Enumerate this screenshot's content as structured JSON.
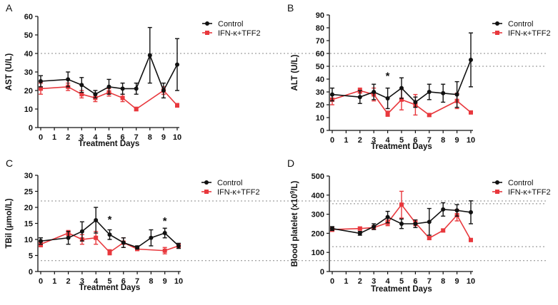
{
  "colors": {
    "control": "#111111",
    "treated": "#e8383d",
    "reference": "#888888"
  },
  "legend_labels": {
    "control": "Control",
    "treated": "IFN-κ+TFF2"
  },
  "chart_data": [
    {
      "panel": "A",
      "type": "line",
      "title": "",
      "xlabel": "Treatment Days",
      "ylabel": "AST (U/L)",
      "x": [
        0,
        2,
        3,
        4,
        5,
        6,
        7,
        8,
        9,
        10
      ],
      "xticks": [
        0,
        1,
        2,
        3,
        4,
        5,
        6,
        7,
        8,
        9,
        10
      ],
      "ylim": [
        0,
        60
      ],
      "yticks": [
        0,
        10,
        20,
        30,
        40,
        50,
        60
      ],
      "reference_lines": [
        40
      ],
      "series": [
        {
          "name": "Control",
          "x": [
            0,
            2,
            3,
            4,
            5,
            6,
            7,
            8,
            9,
            10
          ],
          "values": [
            25,
            26,
            23,
            18,
            22,
            21,
            21,
            39,
            20,
            34
          ],
          "err": [
            3,
            4,
            4,
            2,
            4,
            3,
            3,
            15,
            4,
            14
          ]
        },
        {
          "name": "IFN-κ+TFF2",
          "x": [
            0,
            2,
            3,
            4,
            5,
            6,
            7,
            9,
            10
          ],
          "values": [
            21,
            22,
            18,
            16,
            19,
            16,
            10,
            20,
            12
          ],
          "err": [
            3,
            2,
            2,
            2,
            2,
            2,
            1,
            2,
            1
          ]
        }
      ],
      "annotations": []
    },
    {
      "panel": "B",
      "type": "line",
      "title": "",
      "xlabel": "Treatment Days",
      "ylabel": "ALT (U/L)",
      "x": [
        0,
        2,
        3,
        4,
        5,
        6,
        7,
        8,
        9,
        10
      ],
      "xticks": [
        0,
        1,
        2,
        3,
        4,
        5,
        6,
        7,
        8,
        9,
        10
      ],
      "ylim": [
        0,
        90
      ],
      "yticks": [
        0,
        10,
        20,
        30,
        40,
        50,
        60,
        70,
        80,
        90
      ],
      "reference_lines": [
        50
      ],
      "series": [
        {
          "name": "Control",
          "x": [
            0,
            2,
            3,
            4,
            5,
            6,
            7,
            8,
            9,
            10
          ],
          "values": [
            28,
            26,
            30,
            25,
            33,
            22,
            30,
            29,
            28,
            55
          ],
          "err": [
            5,
            5,
            6,
            8,
            8,
            4,
            6,
            7,
            10,
            21
          ]
        },
        {
          "name": "IFN-κ+TFF2",
          "x": [
            0,
            2,
            3,
            4,
            5,
            6,
            7,
            9,
            10
          ],
          "values": [
            24,
            31,
            28,
            13,
            24,
            20,
            12,
            23,
            14
          ],
          "err": [
            4,
            2,
            5,
            2,
            8,
            8,
            1,
            6,
            1
          ]
        }
      ],
      "annotations": [
        {
          "x": 4,
          "y": 43,
          "text": "*"
        }
      ]
    },
    {
      "panel": "C",
      "type": "line",
      "title": "",
      "xlabel": "Treatment Days",
      "ylabel": "TBil (μmol/L)",
      "x": [
        0,
        2,
        3,
        4,
        5,
        6,
        7,
        8,
        9,
        10
      ],
      "xticks": [
        0,
        1,
        2,
        3,
        4,
        5,
        6,
        7,
        8,
        9,
        10
      ],
      "ylim": [
        0,
        30
      ],
      "yticks": [
        0,
        5,
        10,
        15,
        20,
        25,
        30
      ],
      "reference_lines": [
        22,
        3.4
      ],
      "series": [
        {
          "name": "Control",
          "x": [
            0,
            2,
            3,
            4,
            5,
            6,
            7,
            8,
            9,
            10
          ],
          "values": [
            9.5,
            10.5,
            12.5,
            16,
            11.5,
            9,
            7.5,
            10.5,
            12,
            8
          ],
          "err": [
            1,
            2,
            3,
            4,
            1.5,
            1.5,
            0.5,
            2.5,
            1.5,
            0.8
          ]
        },
        {
          "name": "IFN-κ+TFF2",
          "x": [
            0,
            2,
            3,
            4,
            5,
            6,
            7,
            9,
            10
          ],
          "values": [
            8.5,
            12,
            10,
            10.5,
            6,
            9,
            7,
            6.5,
            8
          ],
          "err": [
            0.8,
            0.8,
            1.5,
            2,
            0.8,
            1.5,
            0.5,
            1,
            0.5
          ]
        }
      ],
      "annotations": [
        {
          "x": 5,
          "y": 16.5,
          "text": "*"
        },
        {
          "x": 9,
          "y": 16,
          "text": "*"
        }
      ]
    },
    {
      "panel": "D",
      "type": "line",
      "title": "",
      "xlabel": "Treatment Days",
      "ylabel_main": "Blood platelet (x10",
      "ylabel_sup": "9",
      "ylabel_end": "/L)",
      "x": [
        0,
        2,
        3,
        4,
        5,
        6,
        7,
        8,
        9,
        10
      ],
      "xticks": [
        0,
        1,
        2,
        3,
        4,
        5,
        6,
        7,
        8,
        9,
        10
      ],
      "ylim": [
        0,
        500
      ],
      "yticks": [
        0,
        100,
        200,
        300,
        400,
        500
      ],
      "reference_lines": [
        355,
        130
      ],
      "series": [
        {
          "name": "Control",
          "x": [
            0,
            2,
            3,
            4,
            5,
            6,
            7,
            8,
            9,
            10
          ],
          "values": [
            225,
            200,
            235,
            285,
            250,
            250,
            260,
            325,
            320,
            310
          ],
          "err": [
            10,
            10,
            15,
            30,
            25,
            20,
            70,
            35,
            30,
            60
          ]
        },
        {
          "name": "IFN-κ+TFF2",
          "x": [
            0,
            2,
            3,
            4,
            5,
            6,
            7,
            8,
            9,
            10
          ],
          "values": [
            220,
            225,
            230,
            255,
            350,
            255,
            175,
            215,
            295,
            165
          ],
          "err": [
            10,
            8,
            10,
            15,
            70,
            15,
            8,
            8,
            30,
            8
          ]
        }
      ],
      "annotations": []
    }
  ]
}
